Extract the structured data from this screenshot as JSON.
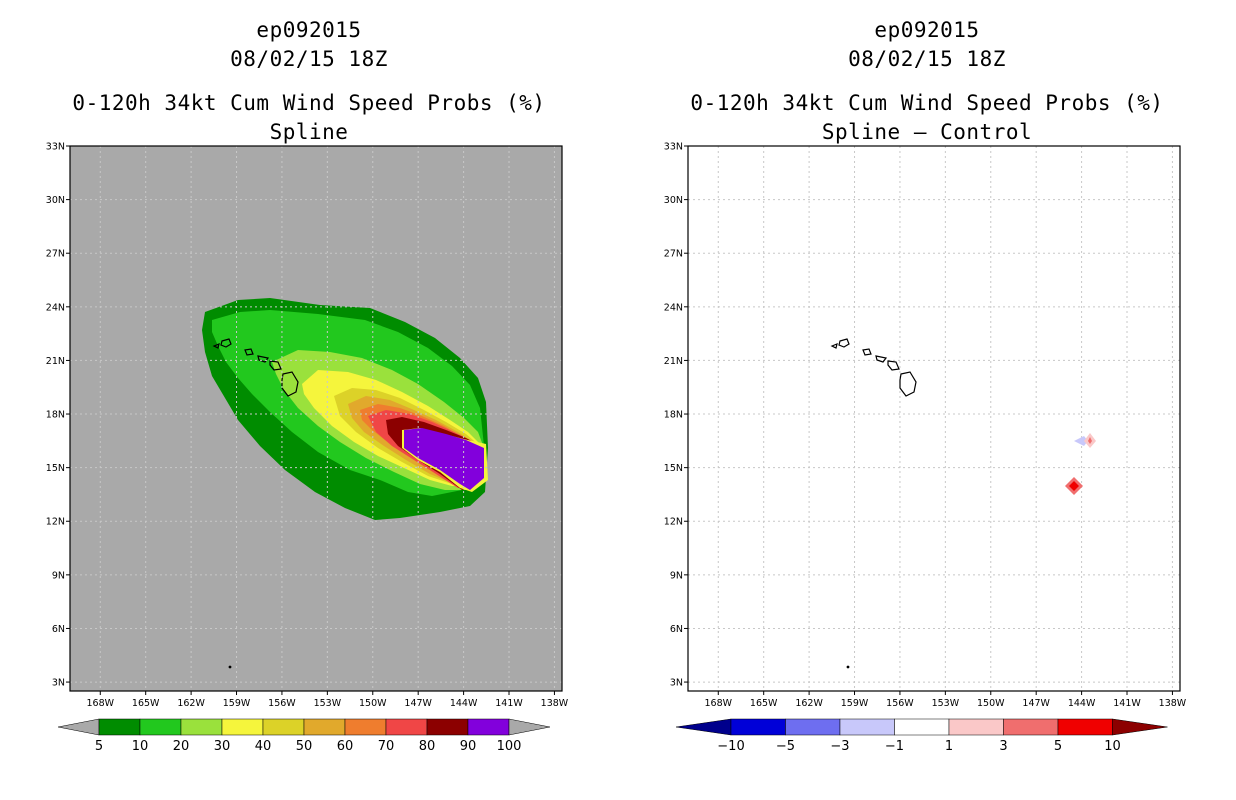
{
  "left_panel": {
    "storm_id": "ep092015",
    "date_time": "08/02/15 18Z",
    "product": "0-120h 34kt Cum Wind Speed Probs (%)",
    "subtitle": "Spline",
    "background_color": "#a9a9a9",
    "colorbar": {
      "colors": [
        "#008c00",
        "#22c81e",
        "#9ae13c",
        "#f5f53c",
        "#dcd228",
        "#e1a92c",
        "#ef7d2e",
        "#f04646",
        "#8c0000",
        "#8200dc"
      ],
      "labels": [
        "5",
        "10",
        "20",
        "30",
        "40",
        "50",
        "60",
        "70",
        "80",
        "90",
        "100"
      ]
    }
  },
  "right_panel": {
    "storm_id": "ep092015",
    "date_time": "08/02/15 18Z",
    "product": "0-120h 34kt Cum Wind Speed Probs (%)",
    "subtitle": "Spline – Control",
    "background_color": "#ffffff",
    "colorbar": {
      "low_arrow_color": "#00008c",
      "high_arrow_color": "#8c0000",
      "colors": [
        "#0000d8",
        "#6e6ef0",
        "#c8c8fa",
        "#ffffff",
        "#fac8c8",
        "#f06e6e",
        "#f00000"
      ],
      "labels": [
        "−10",
        "−5",
        "−3",
        "−1",
        "1",
        "3",
        "5",
        "10"
      ]
    }
  },
  "map_axes": {
    "lat_labels": [
      "33N",
      "30N",
      "27N",
      "24N",
      "21N",
      "18N",
      "15N",
      "12N",
      "9N",
      "6N",
      "3N"
    ],
    "lon_labels": [
      "168W",
      "165W",
      "162W",
      "159W",
      "156W",
      "153W",
      "150W",
      "147W",
      "144W",
      "141W",
      "138W"
    ],
    "lat_range": [
      2.5,
      33
    ],
    "lon_range_west": [
      170,
      137.5
    ]
  }
}
